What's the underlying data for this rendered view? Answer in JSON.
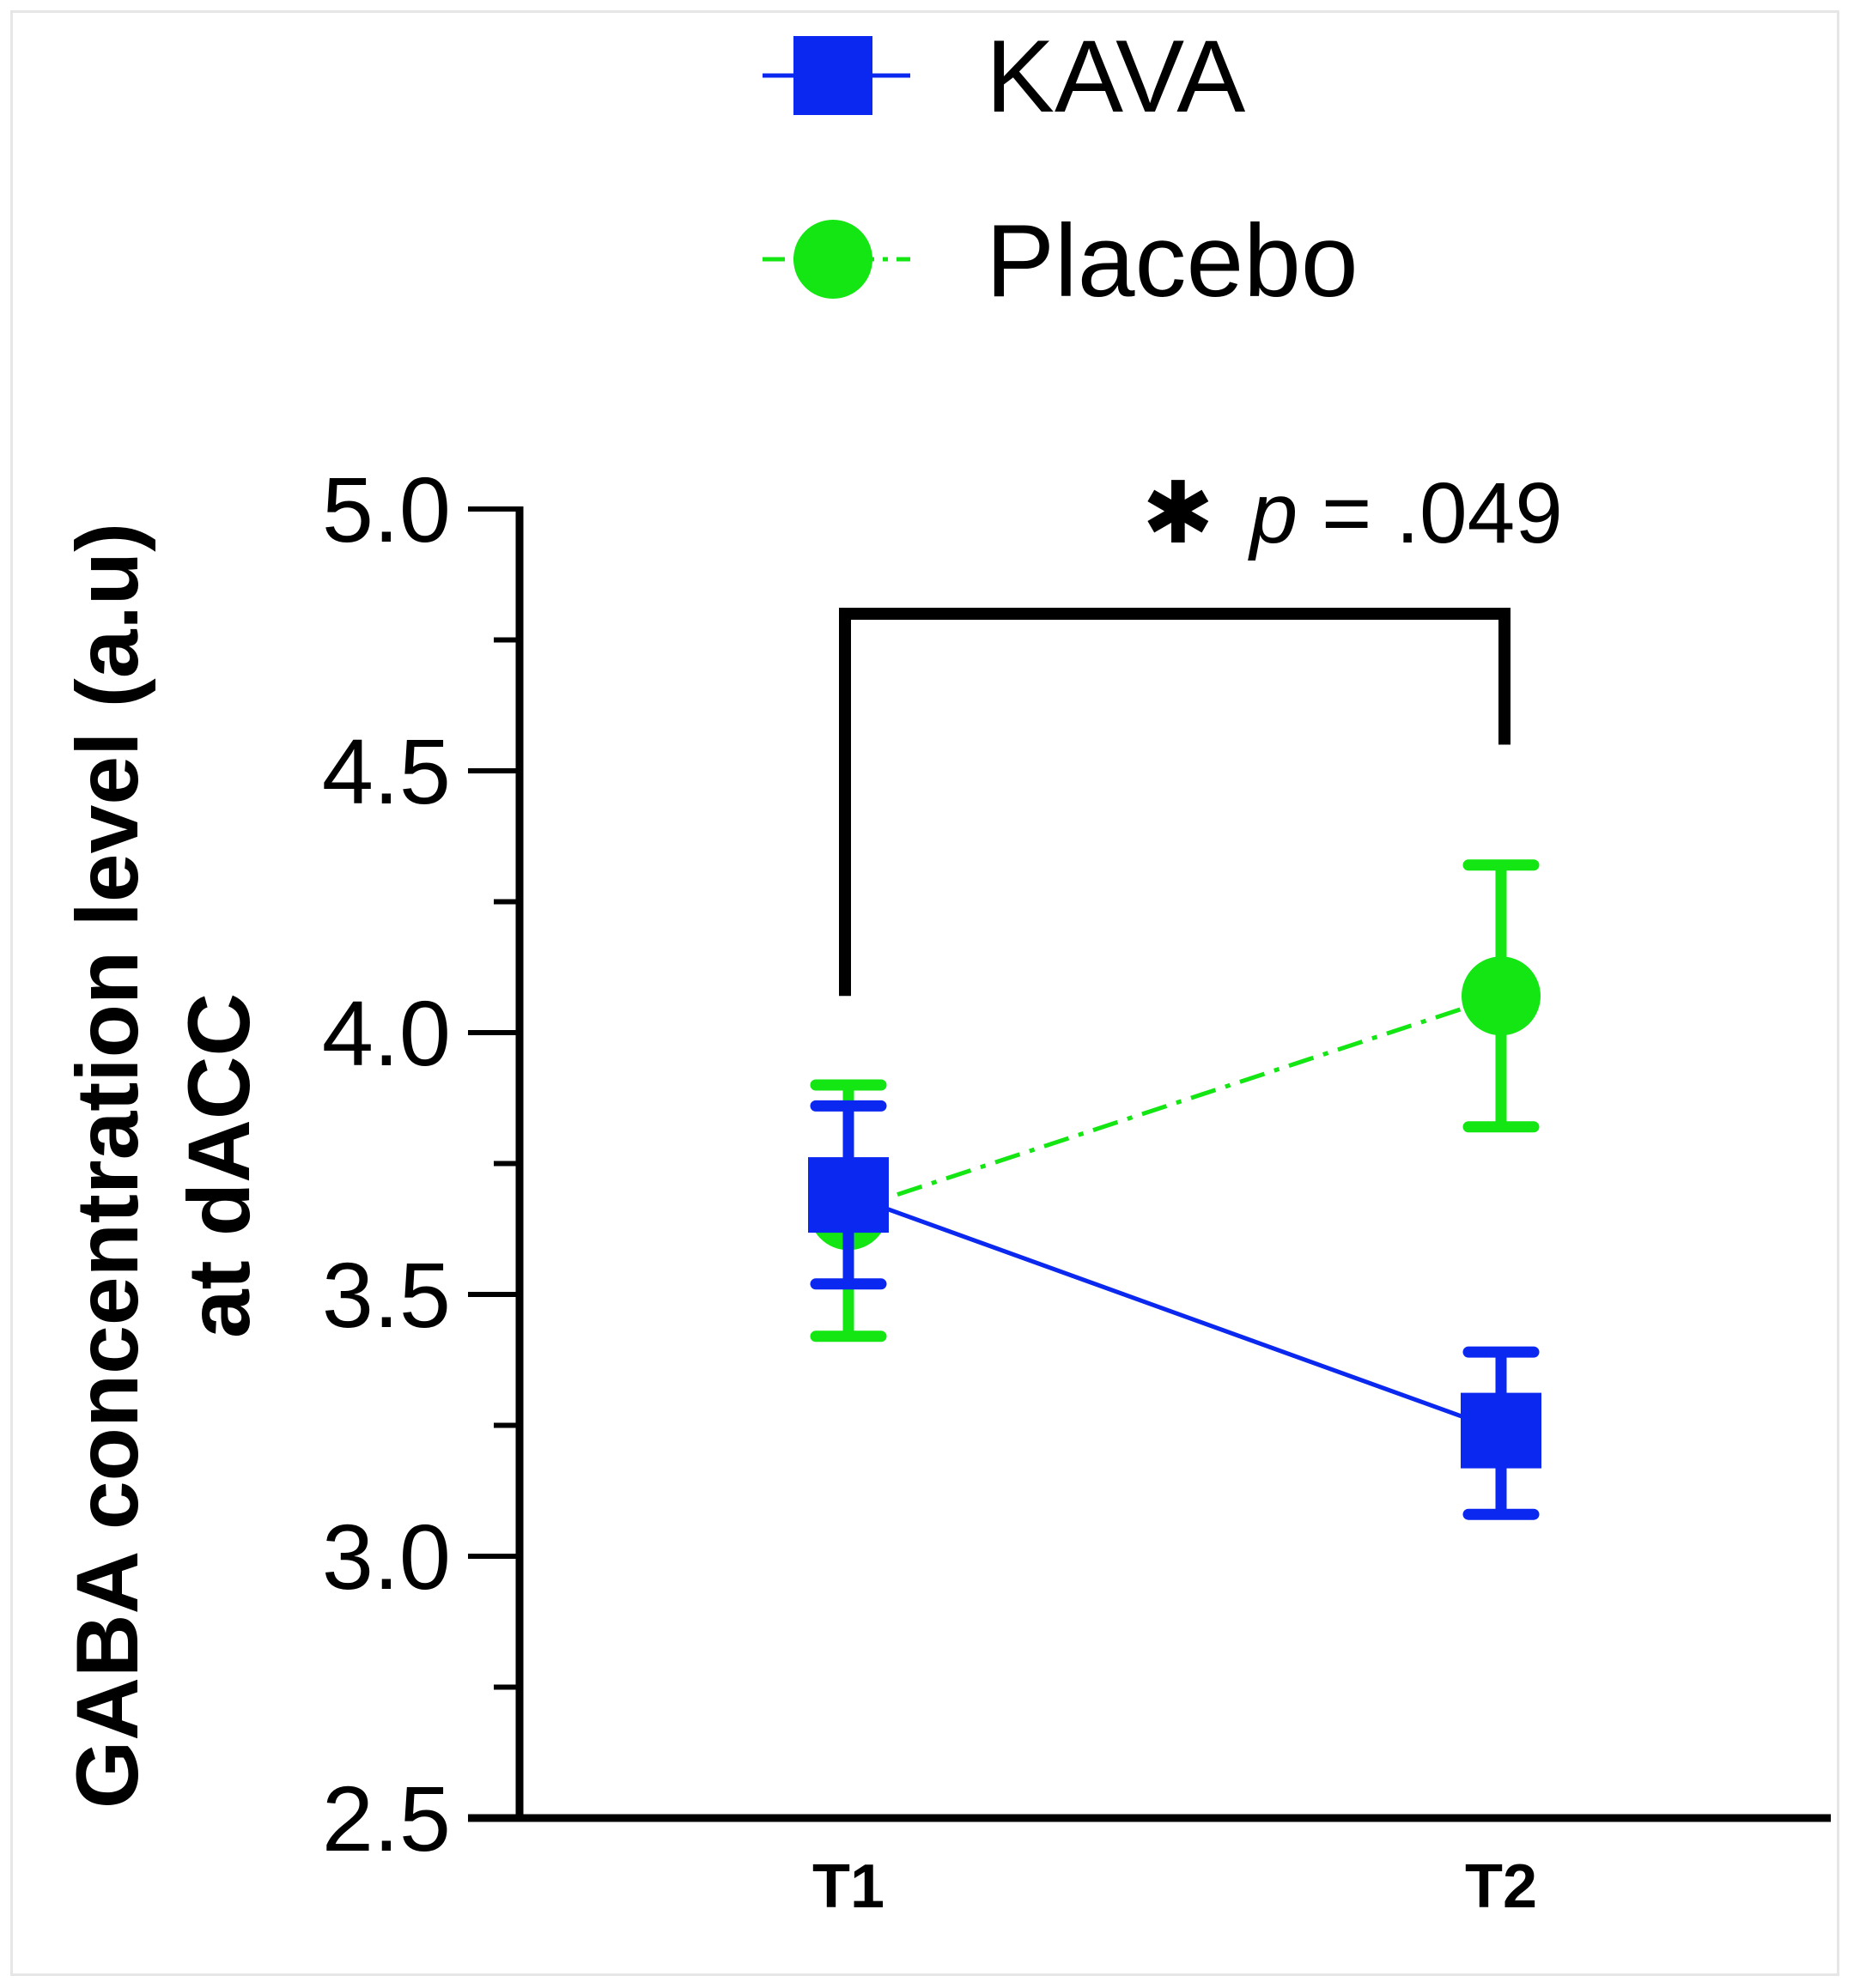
{
  "chart_data": {
    "type": "line",
    "title": "",
    "xlabel": "",
    "ylabel_line1": "GABA concentration level (a.u)",
    "ylabel_line2": "at dACC",
    "categories": [
      "T1",
      "T2"
    ],
    "ylim": [
      2.5,
      5.0
    ],
    "yticks": [
      2.5,
      3.0,
      3.5,
      4.0,
      4.5,
      5.0
    ],
    "ytick_labels": [
      "2.5",
      "3.0",
      "3.5",
      "4.0",
      "4.5",
      "5.0"
    ],
    "grid": false,
    "legend_position": "top-center",
    "series": [
      {
        "name": "KAVA",
        "marker": "square",
        "line_style": "solid",
        "color": "#0a28f0",
        "values": [
          3.69,
          3.24
        ],
        "err_low": [
          3.52,
          3.08
        ],
        "err_high": [
          3.86,
          3.39
        ]
      },
      {
        "name": "Placebo",
        "marker": "circle",
        "line_style": "dash-dot",
        "color": "#13e613",
        "values": [
          3.66,
          4.07
        ],
        "err_low": [
          3.42,
          3.82
        ],
        "err_high": [
          3.9,
          4.32
        ]
      }
    ],
    "annotation": {
      "star": "✱",
      "p_symbol": "p",
      "p_text": " = .049",
      "from": "T1",
      "to": "T2",
      "bar_y": 4.8,
      "left_end_y": 4.07,
      "right_end_y": 4.55
    }
  }
}
